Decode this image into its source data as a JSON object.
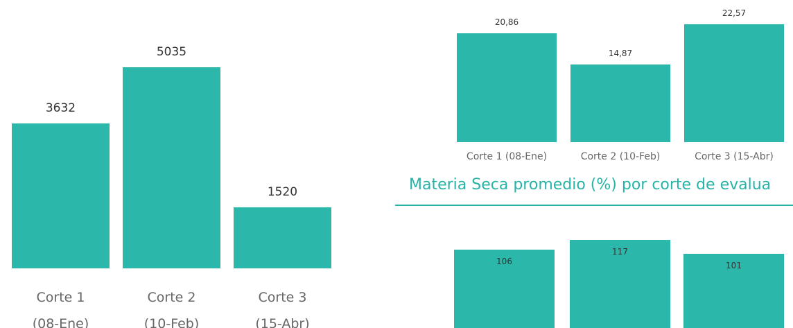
{
  "chart_data": [
    {
      "type": "bar",
      "categories": [
        "Corte 1 (08-Ene)",
        "Corte 2 (10-Feb)",
        "Corte 3 (15-Abr)"
      ],
      "values": [
        3632,
        5035,
        1520
      ],
      "color": "#2bb7aa"
    },
    {
      "type": "bar",
      "categories": [
        "Corte 1 (08-Ene)",
        "Corte 2 (10-Feb)",
        "Corte 3 (15-Abr)"
      ],
      "values": [
        20.86,
        14.87,
        22.57
      ],
      "value_labels": [
        "20,86",
        "14,87",
        "22,57"
      ],
      "color": "#2bb7aa"
    },
    {
      "type": "bar",
      "title": "Materia Seca promedio (%) por corte de evalua",
      "values": [
        106,
        117,
        101
      ],
      "color": "#2bb7aa"
    }
  ]
}
